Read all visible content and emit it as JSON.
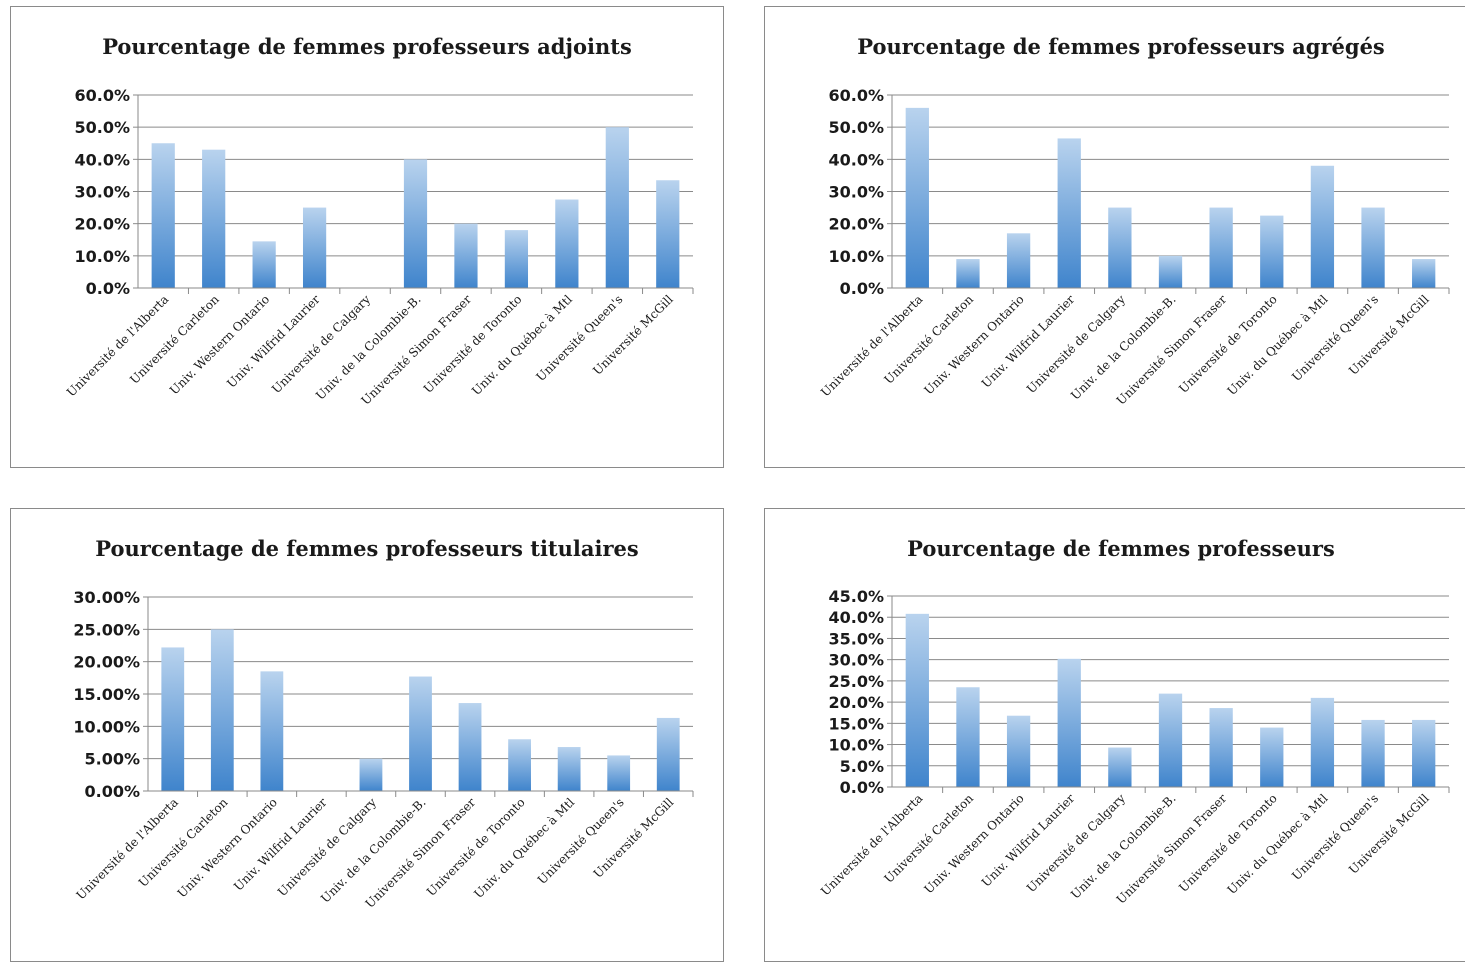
{
  "colors": {
    "bar_top": "#b9d3ee",
    "bar_bottom": "#3f84cc",
    "grid": "#8a8a8a",
    "axis": "#8a8a8a"
  },
  "chart_data": [
    {
      "type": "bar",
      "title": "Pourcentage de femmes professeurs adjoints",
      "categories": [
        "Université de l'Alberta",
        "Université Carleton",
        "Univ. Western Ontario",
        "Univ. Wilfrid Laurier",
        "Université de Calgary",
        "Univ. de la Colombie-B.",
        "Université Simon Fraser",
        "Université de Toronto",
        "Univ. du Québec à Mtl",
        "Université Queen's",
        "Université McGill"
      ],
      "values": [
        45.0,
        43.0,
        14.5,
        25.0,
        0.0,
        40.0,
        20.0,
        18.0,
        27.5,
        50.0,
        33.5
      ],
      "yticks": [
        "0.0%",
        "10.0%",
        "20.0%",
        "30.0%",
        "40.0%",
        "50.0%",
        "60.0%"
      ],
      "ylim": [
        0,
        60
      ],
      "grid": true,
      "legend": "none"
    },
    {
      "type": "bar",
      "title": "Pourcentage de femmes professeurs agrégés",
      "categories": [
        "Université de l'Alberta",
        "Université Carleton",
        "Univ. Western Ontario",
        "Univ. Wilfrid Laurier",
        "Université de Calgary",
        "Univ. de la Colombie-B.",
        "Université Simon Fraser",
        "Université de Toronto",
        "Univ. du Québec à Mtl",
        "Université Queen's",
        "Université McGill"
      ],
      "values": [
        56.0,
        9.0,
        17.0,
        46.5,
        25.0,
        10.0,
        25.0,
        22.5,
        38.0,
        25.0,
        9.0
      ],
      "yticks": [
        "0.0%",
        "10.0%",
        "20.0%",
        "30.0%",
        "40.0%",
        "50.0%",
        "60.0%"
      ],
      "ylim": [
        0,
        60
      ],
      "grid": true,
      "legend": "none"
    },
    {
      "type": "bar",
      "title": "Pourcentage de femmes professeurs titulaires",
      "categories": [
        "Université de l'Alberta",
        "Université Carleton",
        "Univ. Western Ontario",
        "Univ. Wilfrid Laurier",
        "Université de Calgary",
        "Univ. de la Colombie-B.",
        "Université Simon Fraser",
        "Université de Toronto",
        "Univ. du Québec à Mtl",
        "Université Queen's",
        "Université McGill"
      ],
      "values": [
        22.2,
        25.0,
        18.5,
        0.0,
        5.0,
        17.7,
        13.6,
        8.0,
        6.8,
        5.5,
        11.3
      ],
      "yticks": [
        "0.00%",
        "5.00%",
        "10.00%",
        "15.00%",
        "20.00%",
        "25.00%",
        "30.00%"
      ],
      "ylim": [
        0,
        30
      ],
      "grid": true,
      "legend": "none"
    },
    {
      "type": "bar",
      "title": "Pourcentage de femmes professeurs",
      "categories": [
        "Université de l'Alberta",
        "Université Carleton",
        "Univ. Western Ontario",
        "Univ. Wilfrid Laurier",
        "Université de Calgary",
        "Univ. de la Colombie-B.",
        "Université Simon Fraser",
        "Université de Toronto",
        "Univ. du Québec à Mtl",
        "Université Queen's",
        "Université McGill"
      ],
      "values": [
        40.8,
        23.5,
        16.8,
        30.2,
        9.3,
        22.0,
        18.6,
        14.0,
        21.0,
        15.8,
        15.8
      ],
      "yticks": [
        "0.0%",
        "5.0%",
        "10.0%",
        "15.0%",
        "20.0%",
        "25.0%",
        "30.0%",
        "35.0%",
        "40.0%",
        "45.0%"
      ],
      "ylim": [
        0,
        45
      ],
      "grid": true,
      "legend": "none"
    }
  ]
}
